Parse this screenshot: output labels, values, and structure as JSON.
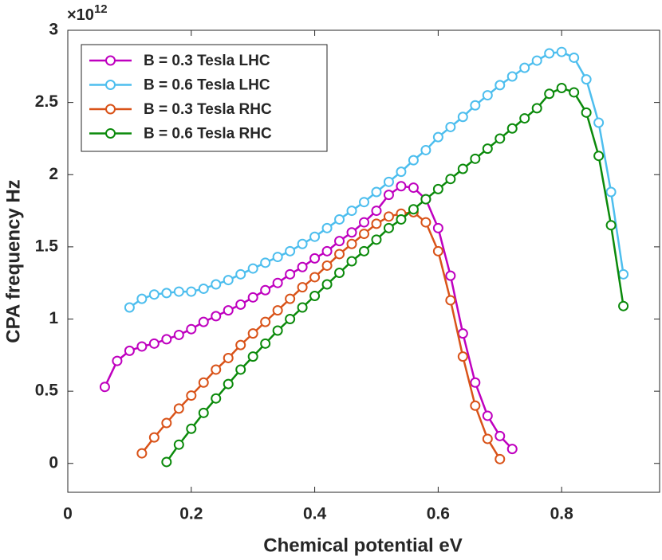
{
  "chart_data": {
    "type": "line",
    "x_label": "Chemical potential eV",
    "y_label": "CPA frequency Hz",
    "y_multiplier": {
      "base": "×10",
      "exponent": "12"
    },
    "xlim": [
      0,
      0.96
    ],
    "xticks": [
      0,
      0.2,
      0.4,
      0.6,
      0.8
    ],
    "ylim": [
      -0.2,
      3
    ],
    "yticks": [
      0,
      0.5,
      1,
      1.5,
      2,
      2.5,
      3
    ],
    "grid": false,
    "legend": "upper left",
    "marker": "circle",
    "series": [
      {
        "name": "B = 0.3 Tesla LHC",
        "color": "#bf00bf",
        "x": [
          0.06,
          0.08,
          0.1,
          0.12,
          0.14,
          0.16,
          0.18,
          0.2,
          0.22,
          0.24,
          0.26,
          0.28,
          0.3,
          0.32,
          0.34,
          0.36,
          0.38,
          0.4,
          0.42,
          0.44,
          0.46,
          0.48,
          0.5,
          0.52,
          0.54,
          0.56,
          0.58,
          0.6,
          0.62,
          0.64,
          0.66,
          0.68,
          0.7,
          0.72
        ],
        "values": [
          0.53,
          0.71,
          0.78,
          0.81,
          0.83,
          0.86,
          0.89,
          0.93,
          0.98,
          1.02,
          1.06,
          1.1,
          1.15,
          1.2,
          1.25,
          1.31,
          1.36,
          1.42,
          1.47,
          1.54,
          1.6,
          1.67,
          1.75,
          1.86,
          1.92,
          1.91,
          1.83,
          1.63,
          1.3,
          0.9,
          0.56,
          0.33,
          0.19,
          0.1
        ]
      },
      {
        "name": "B = 0.6 Tesla LHC",
        "color": "#4dbeee",
        "x": [
          0.1,
          0.12,
          0.14,
          0.16,
          0.18,
          0.2,
          0.22,
          0.24,
          0.26,
          0.28,
          0.3,
          0.32,
          0.34,
          0.36,
          0.38,
          0.4,
          0.42,
          0.44,
          0.46,
          0.48,
          0.5,
          0.52,
          0.54,
          0.56,
          0.58,
          0.6,
          0.62,
          0.64,
          0.66,
          0.68,
          0.7,
          0.72,
          0.74,
          0.76,
          0.78,
          0.8,
          0.82,
          0.84,
          0.86,
          0.88,
          0.9
        ],
        "values": [
          1.08,
          1.14,
          1.17,
          1.18,
          1.19,
          1.19,
          1.21,
          1.24,
          1.27,
          1.31,
          1.35,
          1.39,
          1.43,
          1.47,
          1.52,
          1.57,
          1.63,
          1.69,
          1.75,
          1.81,
          1.88,
          1.95,
          2.02,
          2.1,
          2.17,
          2.26,
          2.33,
          2.4,
          2.48,
          2.55,
          2.62,
          2.68,
          2.74,
          2.79,
          2.84,
          2.85,
          2.81,
          2.66,
          2.36,
          1.88,
          1.31
        ]
      },
      {
        "name": "B = 0.3 Tesla RHC",
        "color": "#d95319",
        "x": [
          0.12,
          0.14,
          0.16,
          0.18,
          0.2,
          0.22,
          0.24,
          0.26,
          0.28,
          0.3,
          0.32,
          0.34,
          0.36,
          0.38,
          0.4,
          0.42,
          0.44,
          0.46,
          0.48,
          0.5,
          0.52,
          0.54,
          0.56,
          0.58,
          0.6,
          0.62,
          0.64,
          0.66,
          0.68,
          0.7
        ],
        "values": [
          0.07,
          0.18,
          0.28,
          0.38,
          0.47,
          0.56,
          0.65,
          0.73,
          0.82,
          0.9,
          0.98,
          1.06,
          1.14,
          1.22,
          1.29,
          1.37,
          1.45,
          1.52,
          1.59,
          1.66,
          1.71,
          1.73,
          1.74,
          1.67,
          1.47,
          1.13,
          0.74,
          0.4,
          0.17,
          0.03
        ]
      },
      {
        "name": "B = 0.6 Tesla RHC",
        "color": "#0b8a0b",
        "x": [
          0.16,
          0.18,
          0.2,
          0.22,
          0.24,
          0.26,
          0.28,
          0.3,
          0.32,
          0.34,
          0.36,
          0.38,
          0.4,
          0.42,
          0.44,
          0.46,
          0.48,
          0.5,
          0.52,
          0.54,
          0.56,
          0.58,
          0.6,
          0.62,
          0.64,
          0.66,
          0.68,
          0.7,
          0.72,
          0.74,
          0.76,
          0.78,
          0.8,
          0.82,
          0.84,
          0.86,
          0.88,
          0.9
        ],
        "values": [
          0.01,
          0.13,
          0.24,
          0.35,
          0.45,
          0.55,
          0.65,
          0.74,
          0.83,
          0.92,
          1.0,
          1.08,
          1.16,
          1.24,
          1.32,
          1.4,
          1.47,
          1.55,
          1.63,
          1.69,
          1.76,
          1.83,
          1.9,
          1.97,
          2.04,
          2.11,
          2.18,
          2.25,
          2.32,
          2.39,
          2.46,
          2.56,
          2.6,
          2.57,
          2.43,
          2.13,
          1.65,
          1.09
        ]
      }
    ]
  }
}
